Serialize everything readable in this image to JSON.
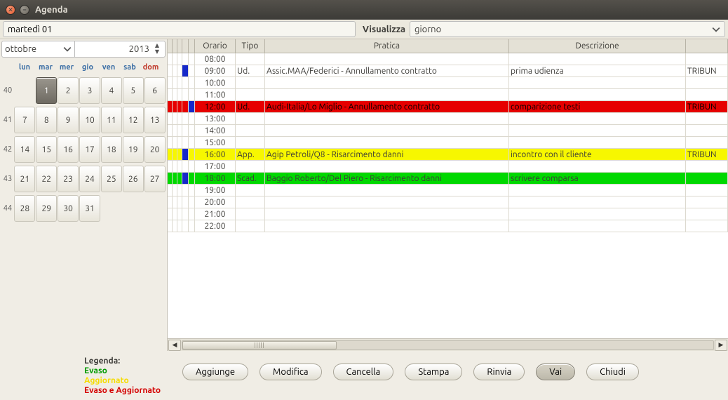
{
  "window": {
    "title": "Agenda"
  },
  "toprow": {
    "date_value": "martedì 01",
    "visualizza_label": "Visualizza",
    "visualizza_value": "giorno"
  },
  "spinners": {
    "month": "ottobre",
    "year": "2013"
  },
  "calendar": {
    "dow": [
      "lun",
      "mar",
      "mer",
      "gio",
      "ven",
      "sab",
      "dom"
    ],
    "weeks": [
      {
        "wn": "40",
        "days": [
          "",
          "1",
          "2",
          "3",
          "4",
          "5",
          "6"
        ],
        "sel_index": 1
      },
      {
        "wn": "41",
        "days": [
          "7",
          "8",
          "9",
          "10",
          "11",
          "12",
          "13"
        ]
      },
      {
        "wn": "42",
        "days": [
          "14",
          "15",
          "16",
          "17",
          "18",
          "19",
          "20"
        ]
      },
      {
        "wn": "43",
        "days": [
          "21",
          "22",
          "23",
          "24",
          "25",
          "26",
          "27"
        ]
      },
      {
        "wn": "44",
        "days": [
          "28",
          "29",
          "30",
          "31",
          "",
          "",
          ""
        ]
      }
    ]
  },
  "grid": {
    "headers": {
      "orario": "Orario",
      "tipo": "Tipo",
      "pratica": "Pratica",
      "descrizione": "Descrizione"
    },
    "rows": [
      {
        "orario": "08:00"
      },
      {
        "orario": "09:00",
        "tipo": "Ud.",
        "pratica": "Assic.MAA/Federici - Annullamento contratto",
        "descr": "prima udienza",
        "extra": "TRIBUN",
        "mark": "blue"
      },
      {
        "orario": "10:00"
      },
      {
        "orario": "11:00"
      },
      {
        "orario": "12:00",
        "tipo": "Ud.",
        "pratica": "Audi-Italia/Lo Miglio - Annullamento contratto",
        "descr": "comparizione testi",
        "extra": "TRIBUN",
        "color": "red",
        "mark": "red",
        "mark2": "blue"
      },
      {
        "orario": "13:00"
      },
      {
        "orario": "14:00"
      },
      {
        "orario": "15:00"
      },
      {
        "orario": "16:00",
        "tipo": "App.",
        "pratica": "Agip Petroli/Q8 - Risarcimento danni",
        "descr": "incontro con il cliente",
        "extra": "TRIBUN",
        "color": "yellow",
        "mark": "blue"
      },
      {
        "orario": "17:00"
      },
      {
        "orario": "18:00",
        "tipo": "Scad.",
        "pratica": "Baggio Roberto/Del Piero - Risarcimento danni",
        "descr": "scrivere comparsa",
        "color": "green",
        "mark": "blue"
      },
      {
        "orario": "19:00"
      },
      {
        "orario": "20:00"
      },
      {
        "orario": "21:00"
      },
      {
        "orario": "22:00"
      }
    ]
  },
  "legend": {
    "title": "Legenda:",
    "evaso": "Evaso",
    "aggiornato": "Aggiornato",
    "evaso_agg": "Evaso e Aggiornato"
  },
  "buttons": {
    "aggiunge": "Aggiunge",
    "modifica": "Modifica",
    "cancella": "Cancella",
    "stampa": "Stampa",
    "rinvia": "Rinvia",
    "vai": "Vai",
    "chiudi": "Chiudi"
  }
}
